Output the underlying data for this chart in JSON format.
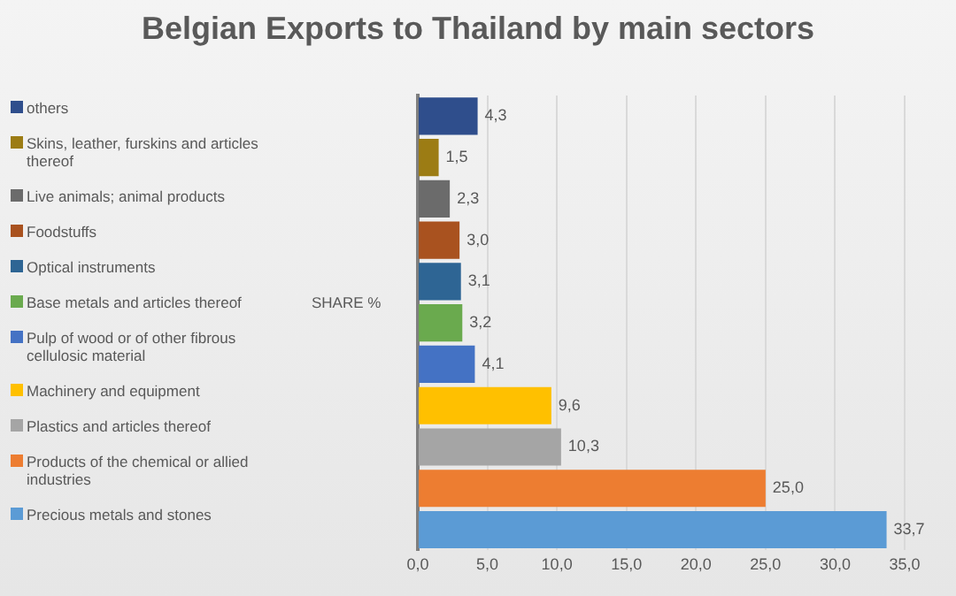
{
  "chart_data": {
    "type": "bar",
    "orientation": "horizontal",
    "title": "Belgian Exports to Thailand by main sectors",
    "ylabel": "SHARE %",
    "categories": [
      null,
      null,
      null,
      null,
      null,
      null,
      null,
      null,
      null,
      null,
      null
    ],
    "series": [
      {
        "name": "others",
        "color": "#2f4e8c",
        "values": [
          4.3,
          null,
          null,
          null,
          null,
          null,
          null,
          null,
          null,
          null,
          null
        ],
        "value_labels": [
          "4,3",
          null,
          null,
          null,
          null,
          null,
          null,
          null,
          null,
          null,
          null
        ]
      },
      {
        "name": "Skins, leather, furskins and articles thereof",
        "color": "#9c7c14",
        "values": [
          null,
          1.5,
          null,
          null,
          null,
          null,
          null,
          null,
          null,
          null,
          null
        ],
        "value_labels": [
          null,
          "1,5",
          null,
          null,
          null,
          null,
          null,
          null,
          null,
          null,
          null
        ]
      },
      {
        "name": "Live animals; animal products",
        "color": "#6b6b6b",
        "values": [
          null,
          null,
          2.3,
          null,
          null,
          null,
          null,
          null,
          null,
          null,
          null
        ],
        "value_labels": [
          null,
          null,
          "2,3",
          null,
          null,
          null,
          null,
          null,
          null,
          null,
          null
        ]
      },
      {
        "name": "Foodstuffs",
        "color": "#a9521f",
        "values": [
          null,
          null,
          null,
          3.0,
          null,
          null,
          null,
          null,
          null,
          null,
          null
        ],
        "value_labels": [
          null,
          null,
          null,
          "3,0",
          null,
          null,
          null,
          null,
          null,
          null,
          null
        ]
      },
      {
        "name": "Optical instruments",
        "color": "#2e6594",
        "values": [
          null,
          null,
          null,
          null,
          3.1,
          null,
          null,
          null,
          null,
          null,
          null
        ],
        "value_labels": [
          null,
          null,
          null,
          null,
          "3,1",
          null,
          null,
          null,
          null,
          null,
          null
        ]
      },
      {
        "name": "Base metals and articles thereof",
        "color": "#6aaa4e",
        "values": [
          null,
          null,
          null,
          null,
          null,
          3.2,
          null,
          null,
          null,
          null,
          null
        ],
        "value_labels": [
          null,
          null,
          null,
          null,
          null,
          "3,2",
          null,
          null,
          null,
          null,
          null
        ]
      },
      {
        "name": "Pulp of wood or of other fibrous cellulosic material",
        "color": "#4472c4",
        "values": [
          null,
          null,
          null,
          null,
          null,
          null,
          4.1,
          null,
          null,
          null,
          null
        ],
        "value_labels": [
          null,
          null,
          null,
          null,
          null,
          null,
          "4,1",
          null,
          null,
          null,
          null
        ]
      },
      {
        "name": "Machinery and equipment",
        "color": "#ffc000",
        "values": [
          null,
          null,
          null,
          null,
          null,
          null,
          null,
          9.6,
          null,
          null,
          null
        ],
        "value_labels": [
          null,
          null,
          null,
          null,
          null,
          null,
          null,
          "9,6",
          null,
          null,
          null
        ]
      },
      {
        "name": "Plastics and articles thereof",
        "color": "#a5a5a5",
        "values": [
          null,
          null,
          null,
          null,
          null,
          null,
          null,
          null,
          10.3,
          null,
          null
        ],
        "value_labels": [
          null,
          null,
          null,
          null,
          null,
          null,
          null,
          null,
          "10,3",
          null,
          null
        ]
      },
      {
        "name": "Products of the chemical or allied industries",
        "color": "#ed7d31",
        "values": [
          null,
          null,
          null,
          null,
          null,
          null,
          null,
          null,
          null,
          25.0,
          null
        ],
        "value_labels": [
          null,
          null,
          null,
          null,
          null,
          null,
          null,
          null,
          null,
          "25,0",
          null
        ]
      },
      {
        "name": "Precious metals and stones",
        "color": "#5b9bd5",
        "values": [
          null,
          null,
          null,
          null,
          null,
          null,
          null,
          null,
          null,
          null,
          33.7
        ],
        "value_labels": [
          null,
          null,
          null,
          null,
          null,
          null,
          null,
          null,
          null,
          null,
          "33,7"
        ]
      }
    ],
    "xlim": [
      0,
      35
    ],
    "xticks": [
      {
        "value": 0,
        "label": "0,0"
      },
      {
        "value": 5,
        "label": "5,0"
      },
      {
        "value": 10,
        "label": "10,0"
      },
      {
        "value": 15,
        "label": "15,0"
      },
      {
        "value": 20,
        "label": "20,0"
      },
      {
        "value": 25,
        "label": "25,0"
      },
      {
        "value": 30,
        "label": "30,0"
      },
      {
        "value": 35,
        "label": "35,0"
      }
    ],
    "grid": "x",
    "legend": "left",
    "tick_labels": "x"
  }
}
